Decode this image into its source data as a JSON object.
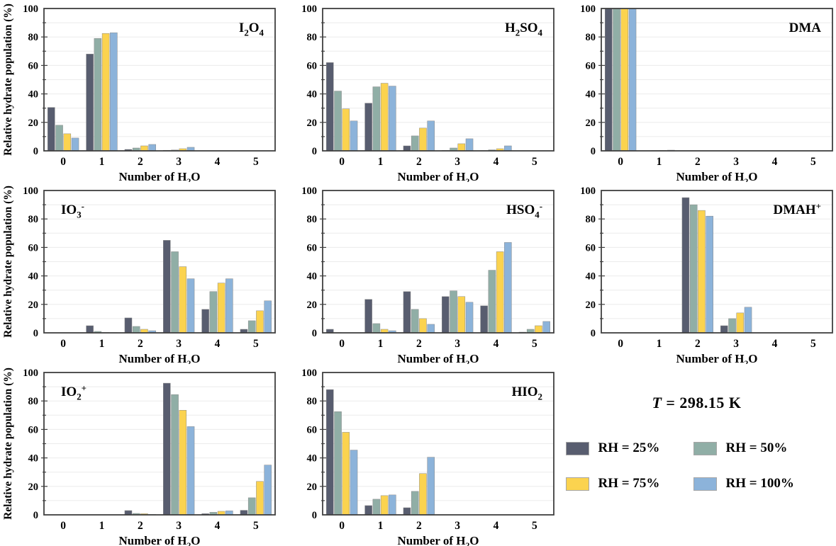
{
  "figure": {
    "axis_color": "#3f3f3f",
    "grid_color": "#ebebeb",
    "bar_stroke": "#8a8a8a",
    "legend": {
      "title_T": "T",
      "title_rest": " = 298.15 K",
      "entries": [
        {
          "label": "RH = 25%",
          "color": "#585d6f"
        },
        {
          "label": "RH = 50%",
          "color": "#90aea6"
        },
        {
          "label": "RH = 75%",
          "color": "#fbd34f"
        },
        {
          "label": "RH = 100%",
          "color": "#8cb3da"
        }
      ]
    }
  },
  "chart_data": [
    {
      "type": "bar",
      "title": "I₂O₄",
      "title_position": "top-right",
      "categories": [
        "0",
        "1",
        "2",
        "3",
        "4",
        "5"
      ],
      "xlabel": "Number of H₂O",
      "ylabel": "Relative hydrate population (%)",
      "ylim": [
        0,
        100
      ],
      "yticks": [
        0,
        20,
        40,
        60,
        80,
        100
      ],
      "grid": true,
      "series": [
        {
          "name": "RH = 25%",
          "values": [
            30.5,
            68,
            1,
            0.4,
            0,
            0
          ]
        },
        {
          "name": "RH = 50%",
          "values": [
            18,
            79,
            2,
            0.6,
            0,
            0
          ]
        },
        {
          "name": "RH = 75%",
          "values": [
            12,
            82.5,
            3.5,
            1.5,
            0,
            0
          ]
        },
        {
          "name": "RH = 100%",
          "values": [
            9,
            83,
            4.5,
            2.5,
            0,
            0
          ]
        }
      ]
    },
    {
      "type": "bar",
      "title": "H₂SO₄",
      "title_position": "top-right",
      "categories": [
        "0",
        "1",
        "2",
        "3",
        "4",
        "5"
      ],
      "xlabel": "Number of H₂O",
      "ylabel": "",
      "ylim": [
        0,
        100
      ],
      "yticks": [
        0,
        20,
        40,
        60,
        80,
        100
      ],
      "grid": true,
      "series": [
        {
          "name": "RH = 25%",
          "values": [
            62,
            33.5,
            3.5,
            0.3,
            0.2,
            0
          ]
        },
        {
          "name": "RH = 50%",
          "values": [
            42,
            45,
            10.5,
            2,
            0.7,
            0
          ]
        },
        {
          "name": "RH = 75%",
          "values": [
            29.5,
            47.5,
            16,
            5,
            1.5,
            0
          ]
        },
        {
          "name": "RH = 100%",
          "values": [
            21,
            45.5,
            21,
            8.5,
            3.5,
            0
          ]
        }
      ]
    },
    {
      "type": "bar",
      "title": "DMA",
      "title_position": "top-right",
      "categories": [
        "0",
        "1",
        "2",
        "3",
        "4",
        "5"
      ],
      "xlabel": "Number of H₂O",
      "ylabel": "",
      "ylim": [
        0,
        100
      ],
      "yticks": [
        0,
        20,
        40,
        60,
        80,
        100
      ],
      "grid": true,
      "series": [
        {
          "name": "RH = 25%",
          "values": [
            100,
            0,
            0,
            0,
            0,
            0
          ]
        },
        {
          "name": "RH = 50%",
          "values": [
            100,
            0.2,
            0,
            0,
            0,
            0
          ]
        },
        {
          "name": "RH = 75%",
          "values": [
            100,
            0.3,
            0,
            0,
            0,
            0
          ]
        },
        {
          "name": "RH = 100%",
          "values": [
            100,
            0.5,
            0,
            0,
            0,
            0
          ]
        }
      ]
    },
    {
      "type": "bar",
      "title": "IO₃⁻",
      "title_position": "top-left",
      "categories": [
        "0",
        "1",
        "2",
        "3",
        "4",
        "5"
      ],
      "xlabel": "Number of H₂O",
      "ylabel": "Relative hydrate population (%)",
      "ylim": [
        0,
        100
      ],
      "yticks": [
        0,
        20,
        40,
        60,
        80,
        100
      ],
      "grid": true,
      "series": [
        {
          "name": "RH = 25%",
          "values": [
            0,
            5,
            10.5,
            65,
            16.5,
            2.5
          ]
        },
        {
          "name": "RH = 50%",
          "values": [
            0,
            1,
            4.5,
            57,
            29,
            8.5
          ]
        },
        {
          "name": "RH = 75%",
          "values": [
            0,
            0.3,
            2.5,
            46.5,
            35,
            15.5
          ]
        },
        {
          "name": "RH = 100%",
          "values": [
            0,
            0.2,
            1.5,
            38,
            38,
            22.5
          ]
        }
      ]
    },
    {
      "type": "bar",
      "title": "HSO₄⁻",
      "title_position": "top-right",
      "categories": [
        "0",
        "1",
        "2",
        "3",
        "4",
        "5"
      ],
      "xlabel": "Number of H₂O",
      "ylabel": "",
      "ylim": [
        0,
        100
      ],
      "yticks": [
        0,
        20,
        40,
        60,
        80,
        100
      ],
      "grid": true,
      "series": [
        {
          "name": "RH = 25%",
          "values": [
            2.5,
            23.5,
            29,
            25.5,
            19,
            0.5
          ]
        },
        {
          "name": "RH = 50%",
          "values": [
            0.2,
            6.5,
            16.5,
            29.5,
            44,
            2.5
          ]
        },
        {
          "name": "RH = 75%",
          "values": [
            0,
            2.5,
            10,
            25.5,
            57,
            5
          ]
        },
        {
          "name": "RH = 100%",
          "values": [
            0,
            1.5,
            6,
            21.5,
            63.5,
            8
          ]
        }
      ]
    },
    {
      "type": "bar",
      "title": "DMAH⁺",
      "title_position": "top-right",
      "categories": [
        "0",
        "1",
        "2",
        "3",
        "4",
        "5"
      ],
      "xlabel": "Number of H₂O",
      "ylabel": "",
      "ylim": [
        0,
        100
      ],
      "yticks": [
        0,
        20,
        40,
        60,
        80,
        100
      ],
      "grid": true,
      "series": [
        {
          "name": "RH = 25%",
          "values": [
            0,
            0,
            95,
            5,
            0,
            0
          ]
        },
        {
          "name": "RH = 50%",
          "values": [
            0,
            0,
            90,
            10,
            0,
            0
          ]
        },
        {
          "name": "RH = 75%",
          "values": [
            0,
            0,
            86,
            14,
            0,
            0
          ]
        },
        {
          "name": "RH = 100%",
          "values": [
            0,
            0,
            82,
            18,
            0,
            0
          ]
        }
      ]
    },
    {
      "type": "bar",
      "title": "IO₂⁺",
      "title_position": "top-left",
      "categories": [
        "0",
        "1",
        "2",
        "3",
        "4",
        "5"
      ],
      "xlabel": "Number of H₂O",
      "ylabel": "Relative hydrate population (%)",
      "ylim": [
        0,
        100
      ],
      "yticks": [
        0,
        20,
        40,
        60,
        80,
        100
      ],
      "grid": true,
      "series": [
        {
          "name": "RH = 25%",
          "values": [
            0,
            0,
            3,
            92.5,
            0.8,
            3.2
          ]
        },
        {
          "name": "RH = 50%",
          "values": [
            0,
            0,
            1,
            84.5,
            1.8,
            12
          ]
        },
        {
          "name": "RH = 75%",
          "values": [
            0,
            0,
            0.8,
            73.5,
            2.5,
            23.5
          ]
        },
        {
          "name": "RH = 100%",
          "values": [
            0,
            0,
            0.3,
            62,
            2.8,
            35
          ]
        }
      ]
    },
    {
      "type": "bar",
      "title": "HIO₂",
      "title_position": "top-right",
      "categories": [
        "0",
        "1",
        "2",
        "3",
        "4",
        "5"
      ],
      "xlabel": "Number of H₂O",
      "ylabel": "",
      "ylim": [
        0,
        100
      ],
      "yticks": [
        0,
        20,
        40,
        60,
        80,
        100
      ],
      "grid": true,
      "series": [
        {
          "name": "RH = 25%",
          "values": [
            88,
            6.5,
            5,
            0,
            0,
            0
          ]
        },
        {
          "name": "RH = 50%",
          "values": [
            72.5,
            11,
            16.5,
            0,
            0,
            0
          ]
        },
        {
          "name": "RH = 75%",
          "values": [
            58,
            13.5,
            29,
            0,
            0,
            0
          ]
        },
        {
          "name": "RH = 100%",
          "values": [
            45.5,
            14,
            40.5,
            0,
            0,
            0
          ]
        }
      ]
    }
  ]
}
